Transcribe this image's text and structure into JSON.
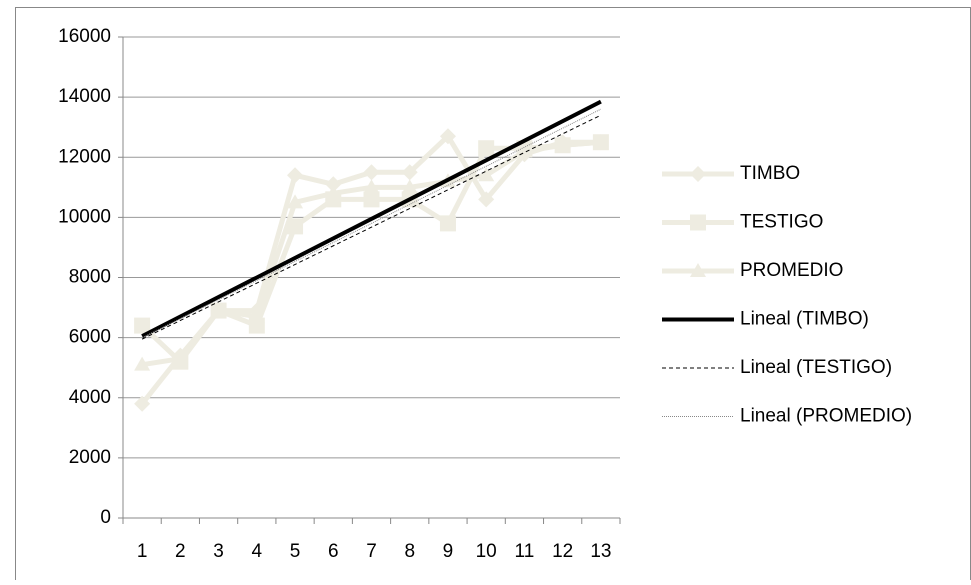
{
  "chart_data": {
    "type": "line",
    "categories": [
      "1",
      "2",
      "3",
      "4",
      "5",
      "6",
      "7",
      "8",
      "9",
      "10",
      "11",
      "12",
      "13"
    ],
    "ylim": [
      0,
      16000
    ],
    "yticks": [
      0,
      2000,
      4000,
      6000,
      8000,
      10000,
      12000,
      14000,
      16000
    ],
    "grid": true,
    "series": [
      {
        "name": "TIMBO",
        "color": "#eeece1",
        "marker": "diamond",
        "values": [
          3800,
          5400,
          6900,
          6900,
          11400,
          11100,
          11500,
          11500,
          12700,
          10600,
          12100,
          12500,
          12500
        ]
      },
      {
        "name": "TESTIGO",
        "color": "#eeece1",
        "marker": "square",
        "values": [
          6400,
          5200,
          6900,
          6400,
          9700,
          10600,
          10600,
          10600,
          9800,
          12300,
          12300,
          12400,
          12500
        ]
      },
      {
        "name": "PROMEDIO",
        "color": "#eeece1",
        "marker": "triangle",
        "values": [
          5100,
          5300,
          6900,
          6700,
          10500,
          10800,
          11000,
          11000,
          11200,
          11400,
          12200,
          12400,
          12500
        ]
      },
      {
        "name": "Lineal (TIMBO)",
        "color": "#000000",
        "line_width": 4,
        "dash": "solid",
        "x": [
          1,
          13
        ],
        "values": [
          6050,
          13850
        ]
      },
      {
        "name": "Lineal (TESTIGO)",
        "color": "#000000",
        "line_width": 1,
        "dash": "dashed",
        "x": [
          1,
          13
        ],
        "values": [
          5950,
          13400
        ]
      },
      {
        "name": "Lineal (PROMEDIO)",
        "color": "#888888",
        "line_width": 1,
        "dash": "dotted",
        "x": [
          1,
          13
        ],
        "values": [
          6000,
          13600
        ]
      }
    ]
  }
}
